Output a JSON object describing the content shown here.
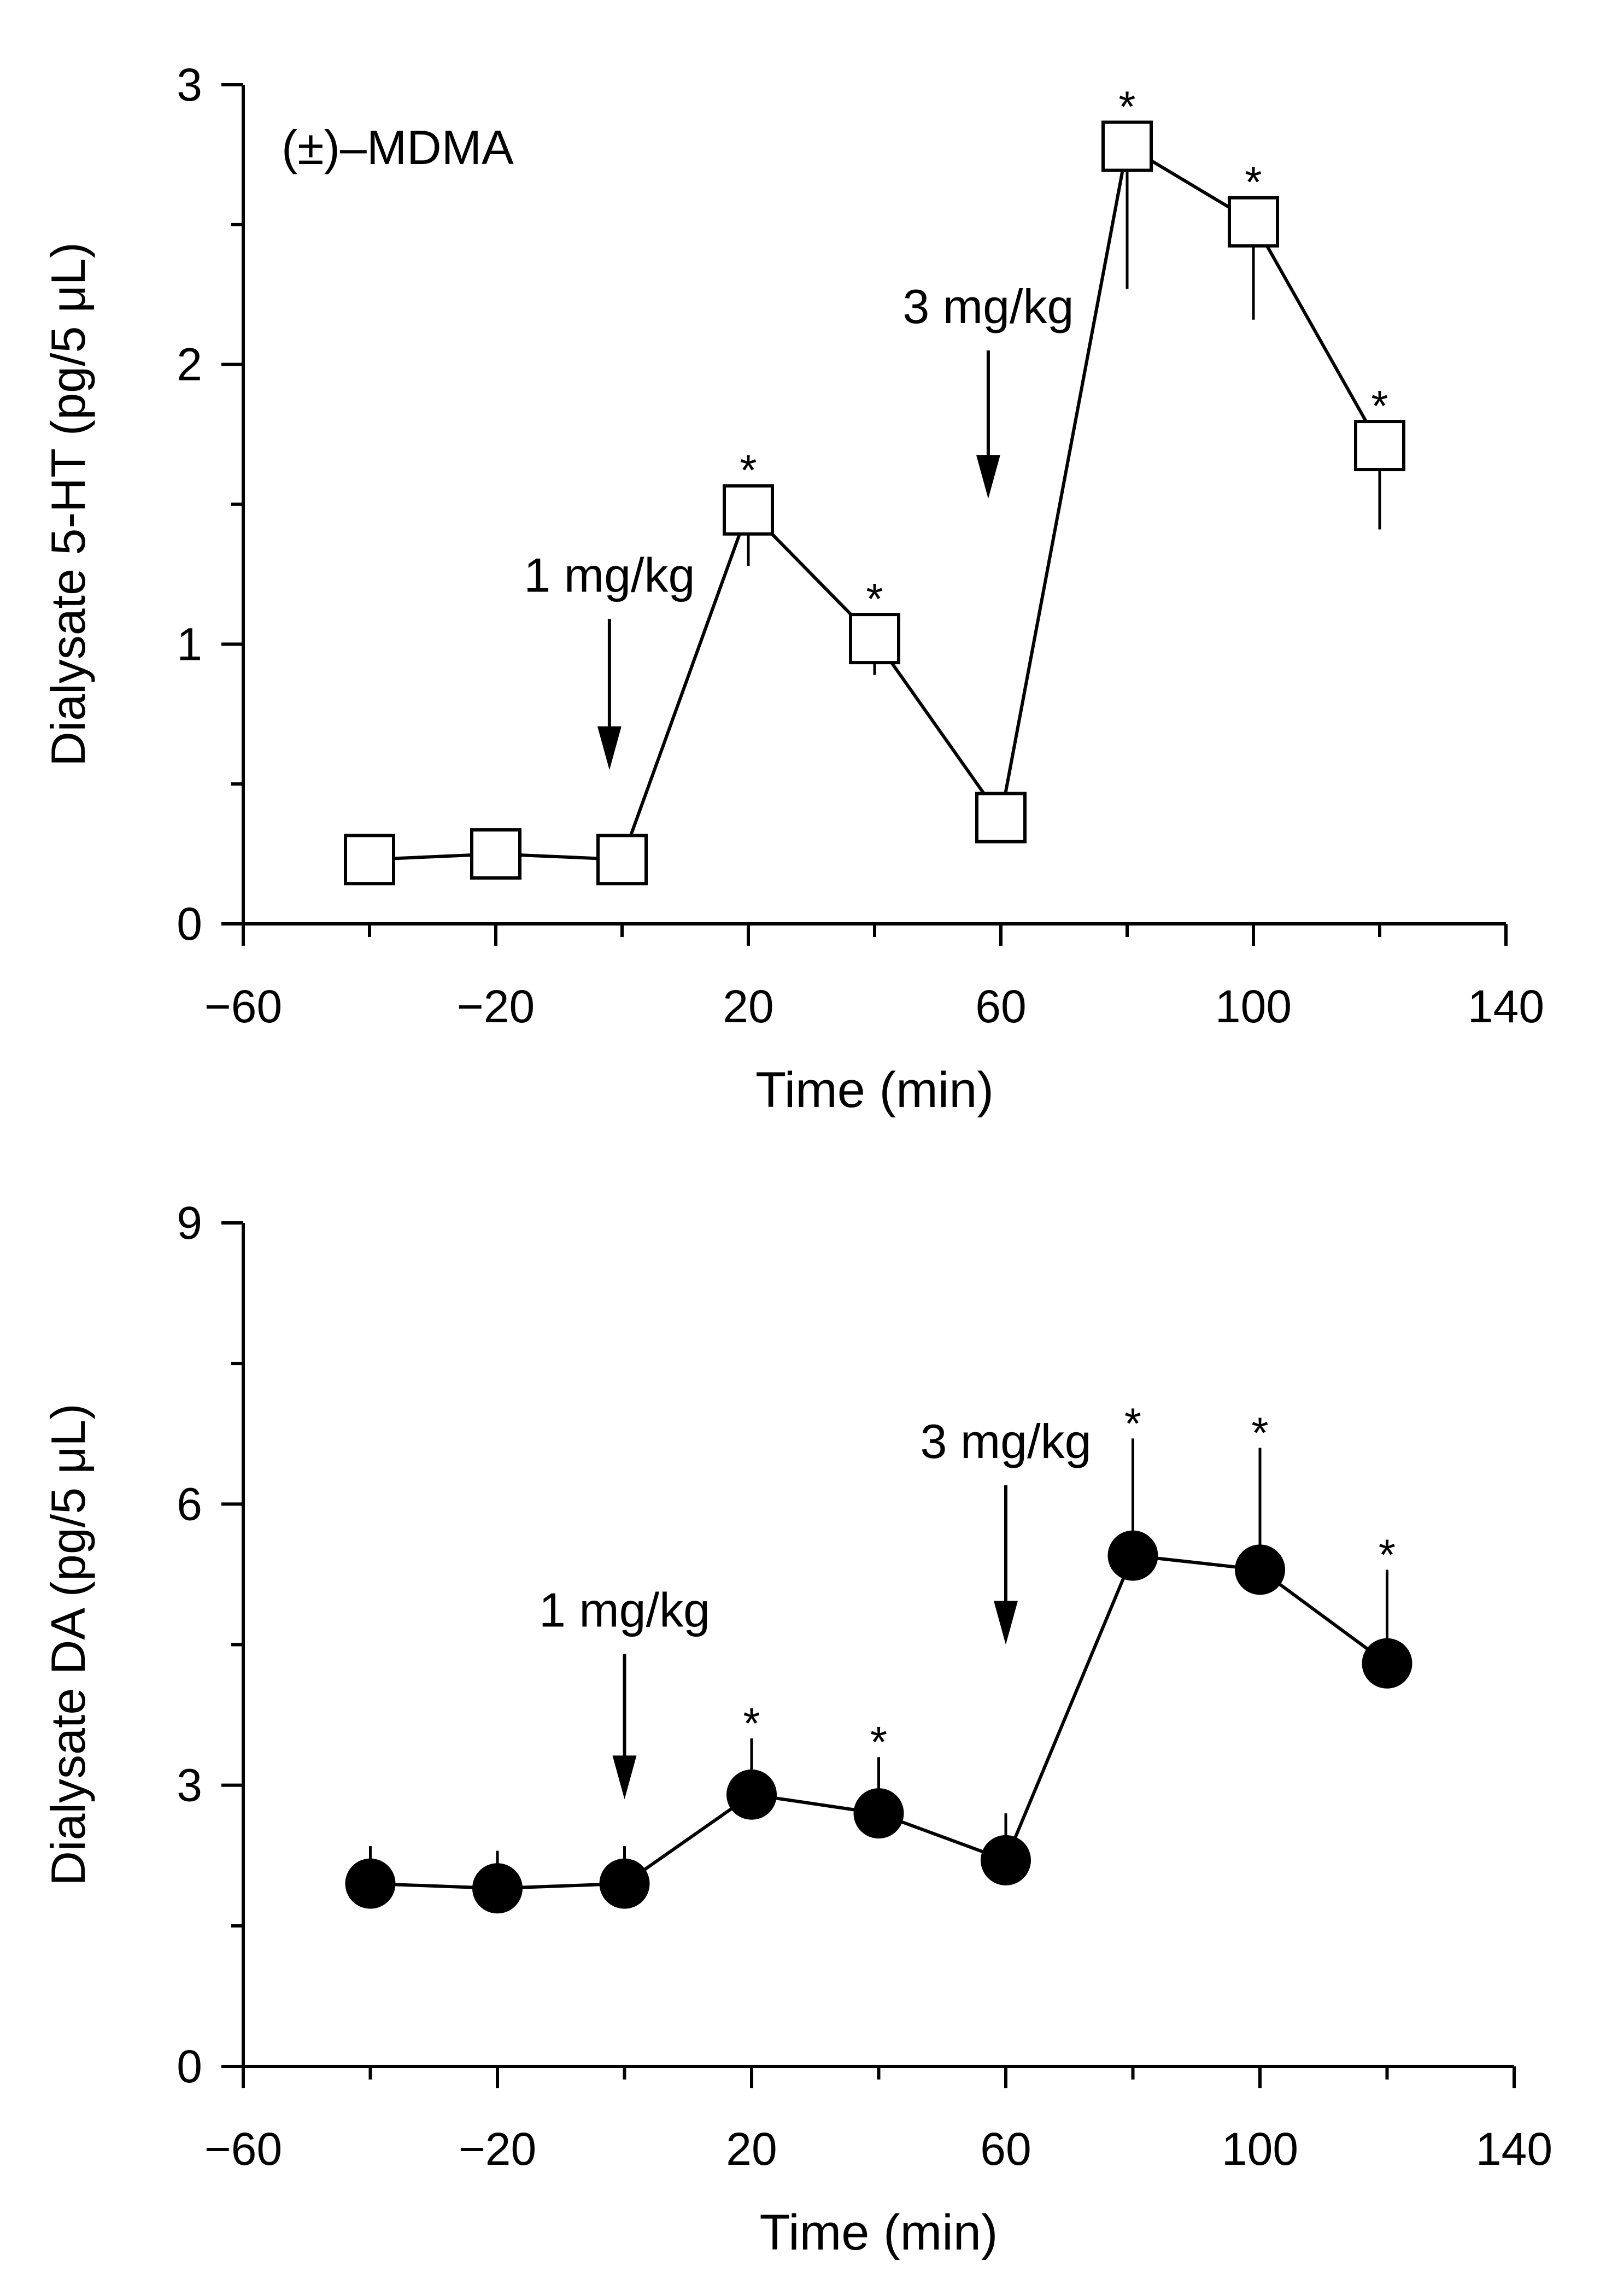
{
  "chart_data": [
    {
      "type": "line",
      "title": "",
      "annotation": "(±)–MDMA",
      "xlabel": "Time (min)",
      "ylabel": "Dialysate 5-HT (pg/5 μL)",
      "xlim": [
        -60,
        140
      ],
      "ylim": [
        0,
        3
      ],
      "xticks": [
        -60,
        -20,
        20,
        60,
        100,
        140
      ],
      "xtick_labels": [
        "−60",
        "−20",
        "20",
        "60",
        "100",
        "140"
      ],
      "xminor": [
        -40,
        0,
        40,
        80,
        120
      ],
      "yticks": [
        0,
        1,
        2,
        3
      ],
      "ytick_labels": [
        "0",
        "1",
        "2",
        "3"
      ],
      "yminor": [
        0.5,
        1.5,
        2.5
      ],
      "grid": false,
      "series": [
        {
          "marker": "open-square",
          "x": [
            -40,
            -20,
            0,
            20,
            40,
            60,
            80,
            100,
            120
          ],
          "y": [
            0.23,
            0.25,
            0.23,
            1.48,
            1.02,
            0.38,
            2.78,
            2.51,
            1.71
          ],
          "error": [
            0,
            0,
            0,
            0.2,
            0.13,
            0,
            0.51,
            0.35,
            0.3
          ],
          "significant": [
            false,
            false,
            false,
            true,
            true,
            false,
            true,
            true,
            true
          ]
        }
      ],
      "arrows": [
        {
          "x": -2,
          "label": "1 mg/kg",
          "y_top": 1.09,
          "y_tip": 0.55
        },
        {
          "x": 58,
          "label": "3 mg/kg",
          "y_top": 2.05,
          "y_tip": 1.52
        }
      ],
      "significance_marker": "*"
    },
    {
      "type": "line",
      "title": "",
      "xlabel": "Time (min)",
      "ylabel": "Dialysate DA (pg/5 μL)",
      "xlim": [
        -60,
        140
      ],
      "ylim": [
        0,
        9
      ],
      "xticks": [
        -60,
        -20,
        20,
        60,
        100,
        140
      ],
      "xtick_labels": [
        "−60",
        "−20",
        "20",
        "60",
        "100",
        "140"
      ],
      "xminor": [
        -40,
        0,
        40,
        80,
        120
      ],
      "yticks": [
        0,
        3,
        6,
        9
      ],
      "ytick_labels": [
        "0",
        "3",
        "6",
        "9"
      ],
      "yminor": [
        1.5,
        4.5,
        7.5
      ],
      "grid": false,
      "series": [
        {
          "marker": "filled-circle",
          "x": [
            -40,
            -20,
            0,
            20,
            40,
            60,
            80,
            100,
            120
          ],
          "y": [
            1.95,
            1.9,
            1.95,
            2.9,
            2.7,
            2.2,
            5.45,
            5.3,
            4.3
          ],
          "error": [
            0.4,
            0.4,
            0.4,
            0.6,
            0.6,
            0.5,
            1.25,
            1.3,
            1.0
          ],
          "significant": [
            false,
            false,
            false,
            true,
            true,
            false,
            true,
            true,
            true
          ]
        }
      ],
      "arrows": [
        {
          "x": 0,
          "label": "1 mg/kg",
          "y_top": 4.4,
          "y_tip": 2.85
        },
        {
          "x": 60,
          "label": "3 mg/kg",
          "y_top": 6.2,
          "y_tip": 4.5
        }
      ],
      "significance_marker": "*"
    }
  ]
}
